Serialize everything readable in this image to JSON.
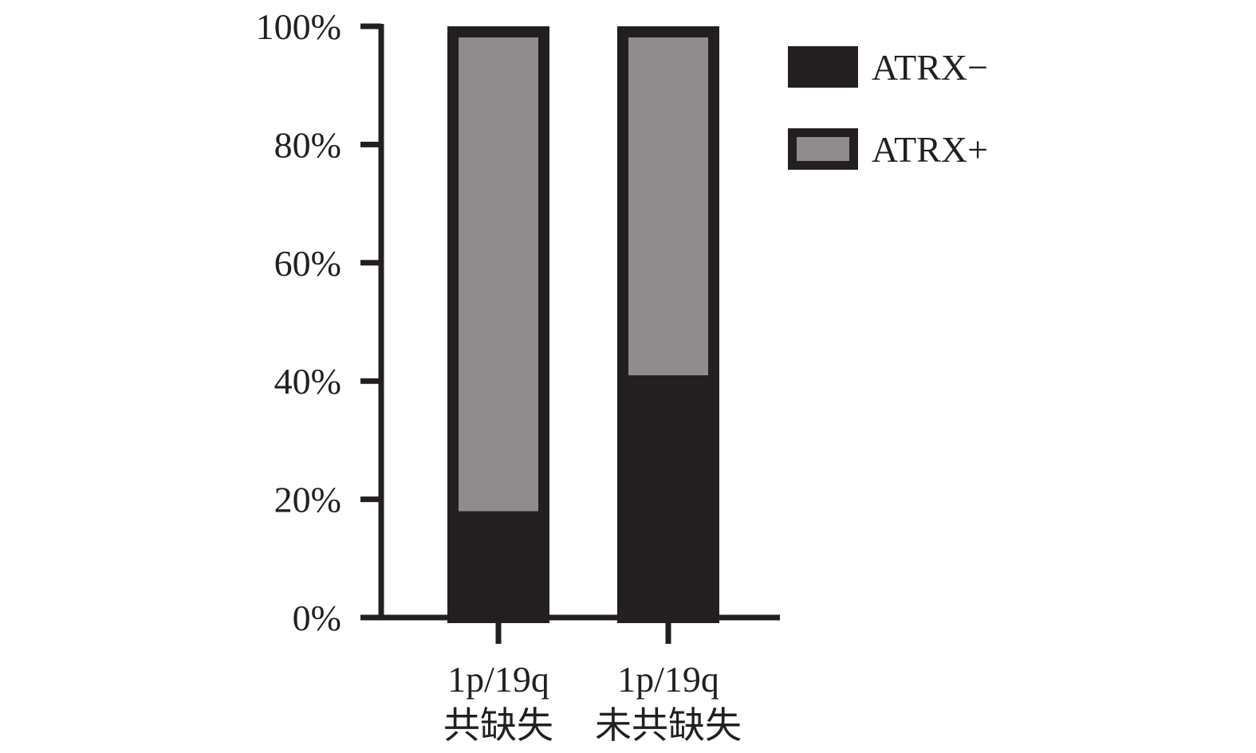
{
  "chart_data": {
    "type": "bar",
    "stacked": true,
    "categories": [
      [
        "1p/19q",
        "共缺失"
      ],
      [
        "1p/19q",
        "未共缺失"
      ]
    ],
    "series": [
      {
        "name": "ATRX−",
        "values": [
          18,
          41
        ],
        "color": "#231f20"
      },
      {
        "name": "ATRX+",
        "values": [
          82,
          59
        ],
        "color": "#8e8c8d"
      }
    ],
    "ylim": [
      0,
      100
    ],
    "yticks": [
      0,
      20,
      40,
      60,
      80,
      100
    ],
    "ytick_labels": [
      "0%",
      "20%",
      "40%",
      "60%",
      "80%",
      "100%"
    ],
    "title": "",
    "xlabel": "",
    "ylabel": "",
    "grid": false,
    "legend_position": "top-right",
    "axis_color": "#231f20"
  }
}
